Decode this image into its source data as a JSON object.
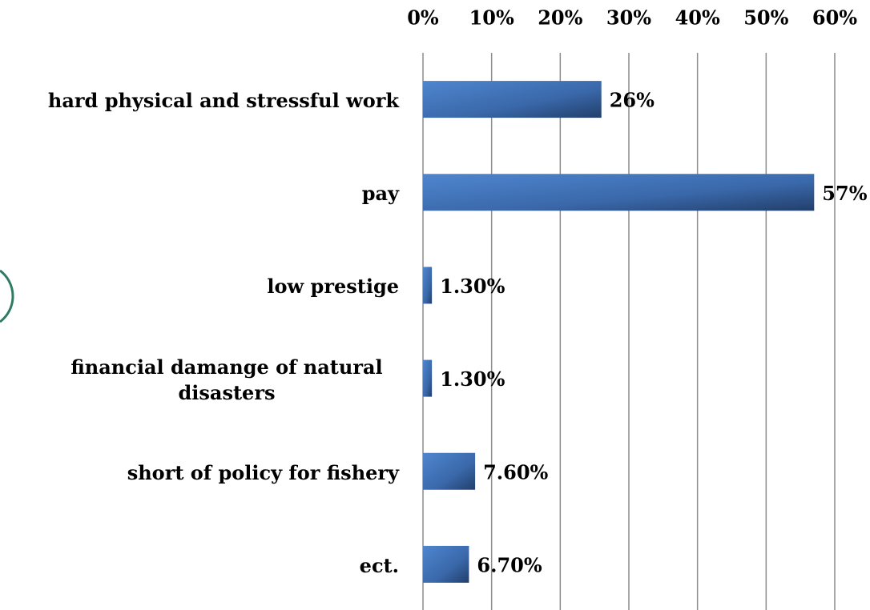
{
  "chart_data": {
    "type": "bar",
    "orientation": "horizontal",
    "categories": [
      "hard physical and stressful work",
      "pay",
      "low prestige",
      "financial damange of natural disasters",
      "short of policy for fishery",
      "ect."
    ],
    "values": [
      26,
      57,
      1.3,
      1.3,
      7.6,
      6.7
    ],
    "value_labels": [
      "26%",
      "57%",
      "1.30%",
      "1.30%",
      "7.60%",
      "6.70%"
    ],
    "color": "#3f72b8",
    "xlim": [
      0,
      60
    ],
    "xticks": [
      {
        "value": 0,
        "label": "0%"
      },
      {
        "value": 10,
        "label": "10%"
      },
      {
        "value": 20,
        "label": "20%"
      },
      {
        "value": 30,
        "label": "30%"
      },
      {
        "value": 40,
        "label": "40%"
      },
      {
        "value": 50,
        "label": "50%"
      },
      {
        "value": 60,
        "label": "60%"
      }
    ],
    "grid": true
  }
}
